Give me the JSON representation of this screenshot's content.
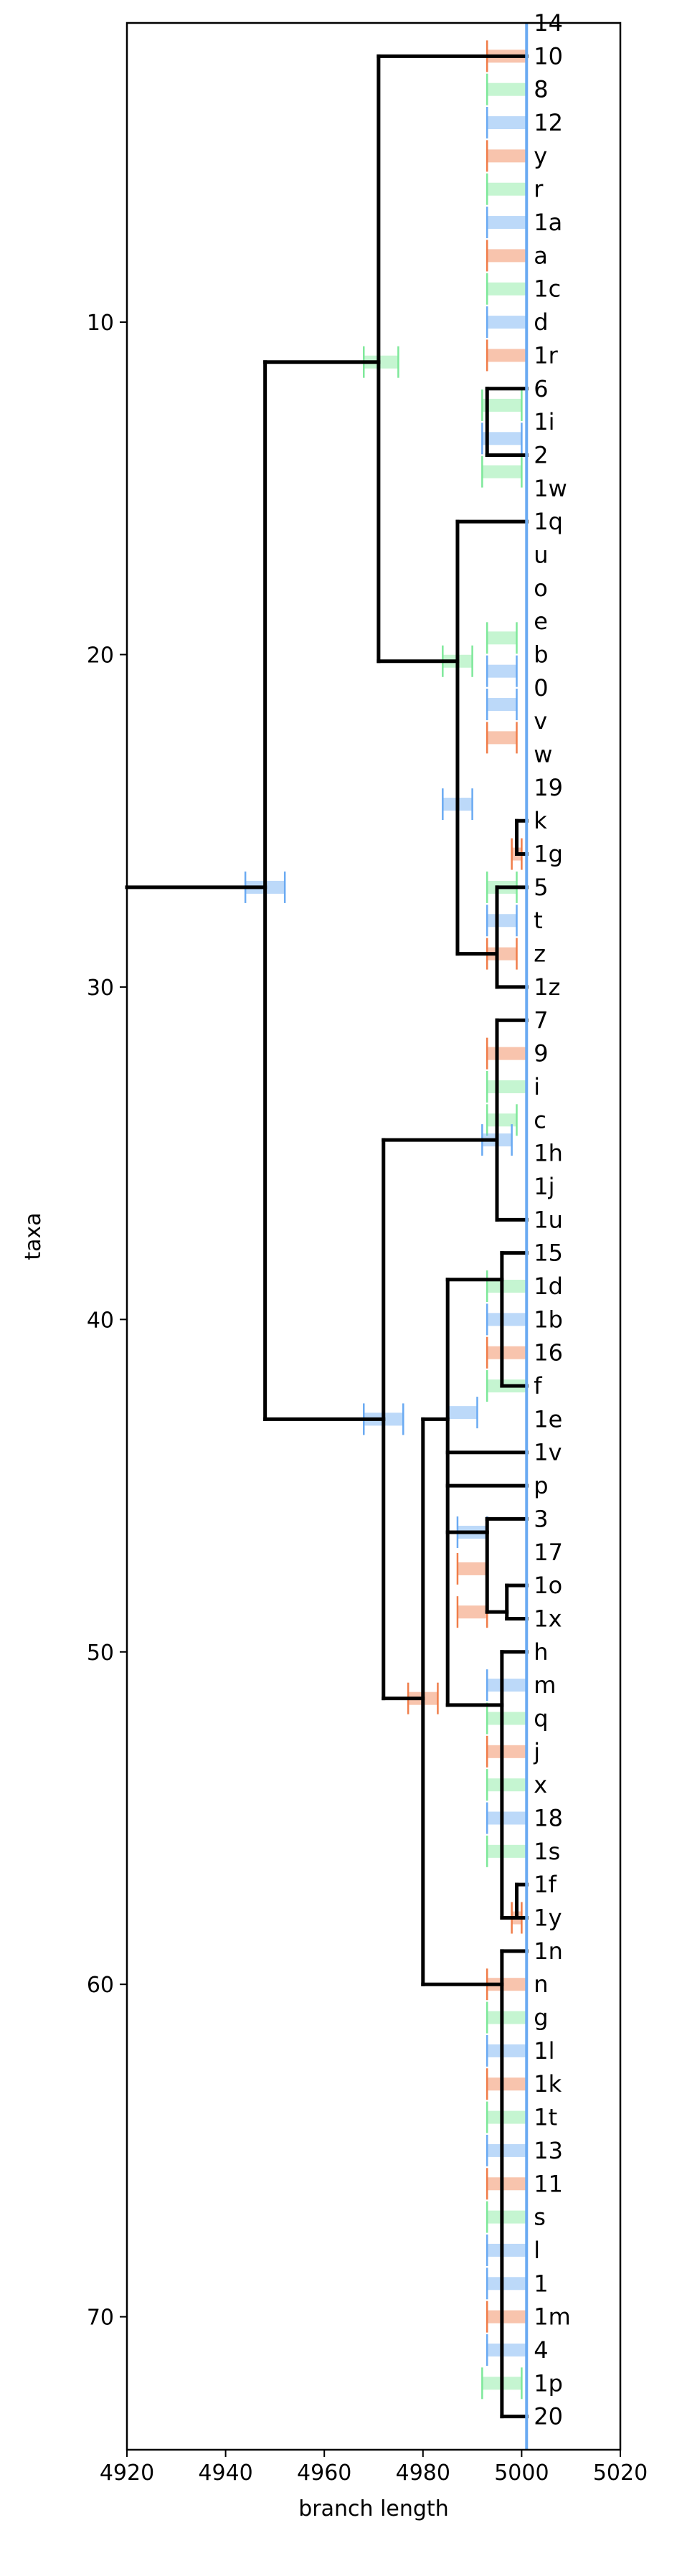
{
  "chart_data": {
    "type": "tree",
    "xlabel": "branch length",
    "ylabel": "taxa",
    "xlim": [
      4920,
      5020
    ],
    "xticks": [
      4920,
      4940,
      4960,
      4980,
      5000,
      5020
    ],
    "xtick_labels": [
      "4920",
      "4940",
      "4960",
      "4980",
      "5000",
      "5020"
    ],
    "ylim": [
      74,
      1
    ],
    "yticks": [
      10,
      20,
      30,
      40,
      50,
      60,
      70
    ],
    "ytick_labels": [
      "10",
      "20",
      "30",
      "40",
      "50",
      "60",
      "70"
    ],
    "grid": false,
    "vline_x": 5001,
    "colors": {
      "blue": "#6aaaf2",
      "orange": "#f07d4a",
      "green": "#7ee89a",
      "black": "#000000",
      "vline": "#6aaaf2"
    },
    "leaves": [
      {
        "y": 1,
        "label": "14"
      },
      {
        "y": 2,
        "label": "10"
      },
      {
        "y": 3,
        "label": "8"
      },
      {
        "y": 4,
        "label": "12"
      },
      {
        "y": 5,
        "label": "y"
      },
      {
        "y": 6,
        "label": "r"
      },
      {
        "y": 7,
        "label": "1a"
      },
      {
        "y": 8,
        "label": "a"
      },
      {
        "y": 9,
        "label": "1c"
      },
      {
        "y": 10,
        "label": "d"
      },
      {
        "y": 11,
        "label": "1r"
      },
      {
        "y": 12,
        "label": "6"
      },
      {
        "y": 13,
        "label": "1i"
      },
      {
        "y": 14,
        "label": "2"
      },
      {
        "y": 15,
        "label": "1w"
      },
      {
        "y": 16,
        "label": "1q"
      },
      {
        "y": 17,
        "label": "u"
      },
      {
        "y": 18,
        "label": "o"
      },
      {
        "y": 19,
        "label": "e"
      },
      {
        "y": 20,
        "label": "b"
      },
      {
        "y": 21,
        "label": "0"
      },
      {
        "y": 22,
        "label": "v"
      },
      {
        "y": 23,
        "label": "w"
      },
      {
        "y": 24,
        "label": "19"
      },
      {
        "y": 25,
        "label": "k"
      },
      {
        "y": 26,
        "label": "1g"
      },
      {
        "y": 27,
        "label": "5"
      },
      {
        "y": 28,
        "label": "t"
      },
      {
        "y": 29,
        "label": "z"
      },
      {
        "y": 30,
        "label": "1z"
      },
      {
        "y": 31,
        "label": "7"
      },
      {
        "y": 32,
        "label": "9"
      },
      {
        "y": 33,
        "label": "i"
      },
      {
        "y": 34,
        "label": "c"
      },
      {
        "y": 35,
        "label": "1h"
      },
      {
        "y": 36,
        "label": "1j"
      },
      {
        "y": 37,
        "label": "1u"
      },
      {
        "y": 38,
        "label": "15"
      },
      {
        "y": 39,
        "label": "1d"
      },
      {
        "y": 40,
        "label": "1b"
      },
      {
        "y": 41,
        "label": "16"
      },
      {
        "y": 42,
        "label": "f"
      },
      {
        "y": 43,
        "label": "1e"
      },
      {
        "y": 44,
        "label": "1v"
      },
      {
        "y": 45,
        "label": "p"
      },
      {
        "y": 46,
        "label": "3"
      },
      {
        "y": 47,
        "label": "17"
      },
      {
        "y": 48,
        "label": "1o"
      },
      {
        "y": 49,
        "label": "1x"
      },
      {
        "y": 50,
        "label": "h"
      },
      {
        "y": 51,
        "label": "m"
      },
      {
        "y": 52,
        "label": "q"
      },
      {
        "y": 53,
        "label": "j"
      },
      {
        "y": 54,
        "label": "x"
      },
      {
        "y": 55,
        "label": "18"
      },
      {
        "y": 56,
        "label": "1s"
      },
      {
        "y": 57,
        "label": "1f"
      },
      {
        "y": 58,
        "label": "1y"
      },
      {
        "y": 59,
        "label": "1n"
      },
      {
        "y": 60,
        "label": "n"
      },
      {
        "y": 61,
        "label": "g"
      },
      {
        "y": 62,
        "label": "1l"
      },
      {
        "y": 63,
        "label": "1k"
      },
      {
        "y": 64,
        "label": "1t"
      },
      {
        "y": 65,
        "label": "13"
      },
      {
        "y": 66,
        "label": "11"
      },
      {
        "y": 67,
        "label": "s"
      },
      {
        "y": 68,
        "label": "l"
      },
      {
        "y": 69,
        "label": "1"
      },
      {
        "y": 70,
        "label": "1m"
      },
      {
        "y": 71,
        "label": "4"
      },
      {
        "y": 72,
        "label": "1p"
      },
      {
        "y": 73,
        "label": "20"
      }
    ],
    "branches": [
      [
        4920,
        27,
        4948,
        27
      ],
      [
        4948,
        11.2,
        4948,
        43
      ],
      [
        4948,
        11.2,
        4971,
        11.2
      ],
      [
        4971,
        2,
        4971,
        20.2
      ],
      [
        4971,
        2,
        5001,
        2
      ],
      [
        4971,
        20.2,
        4987,
        20.2
      ],
      [
        4987,
        16,
        4987,
        29
      ],
      [
        4987,
        16,
        5001,
        16
      ],
      [
        4987,
        29,
        4995,
        29
      ],
      [
        4995,
        27,
        4995,
        30
      ],
      [
        4995,
        27,
        5001,
        27
      ],
      [
        4995,
        30,
        5001,
        30
      ],
      [
        4948,
        43,
        4972,
        43
      ],
      [
        4972,
        34.6,
        4972,
        51.4
      ],
      [
        4972,
        34.6,
        4995,
        34.6
      ],
      [
        4995,
        31,
        4995,
        37
      ],
      [
        4995,
        31,
        5001,
        31
      ],
      [
        4995,
        37,
        5001,
        37
      ],
      [
        4972,
        51.4,
        4980,
        51.4
      ],
      [
        4980,
        43,
        4980,
        60
      ],
      [
        4980,
        43,
        4985,
        43
      ],
      [
        4985,
        38.8,
        4985,
        51.6
      ],
      [
        4985,
        38.8,
        4996,
        38.8
      ],
      [
        4996,
        38,
        4996,
        42
      ],
      [
        4996,
        38,
        5001,
        38
      ],
      [
        4996,
        42,
        5001,
        42
      ],
      [
        4985,
        44,
        5001,
        44
      ],
      [
        4985,
        45,
        5001,
        45
      ],
      [
        4985,
        46.4,
        4993,
        46.4
      ],
      [
        4993,
        46,
        4993,
        48.8
      ],
      [
        4993,
        46,
        5001,
        46
      ],
      [
        4993,
        48.8,
        4997,
        48.8
      ],
      [
        4997,
        48,
        4997,
        49
      ],
      [
        4997,
        48,
        5001,
        48
      ],
      [
        4997,
        49,
        5001,
        49
      ],
      [
        4985,
        51.6,
        4996,
        51.6
      ],
      [
        4996,
        50,
        4996,
        58
      ],
      [
        4996,
        50,
        5001,
        50
      ],
      [
        4996,
        58,
        5001,
        58
      ],
      [
        4980,
        60,
        4996,
        60
      ],
      [
        4996,
        59,
        4996,
        73
      ],
      [
        4996,
        59,
        5001,
        59
      ],
      [
        4996,
        73,
        5001,
        73
      ],
      [
        4993,
        12,
        4993,
        14
      ],
      [
        4993,
        12,
        5001,
        12
      ],
      [
        4993,
        14,
        5001,
        14
      ],
      [
        4999,
        25,
        4999,
        26
      ],
      [
        4999,
        25,
        5001,
        25
      ],
      [
        4999,
        26,
        5001,
        26
      ],
      [
        4999,
        57,
        4999,
        58
      ],
      [
        4999,
        57,
        5001,
        57
      ]
    ],
    "ci_bars": [
      {
        "y": 27,
        "center": 4948,
        "lo": 4944,
        "hi": 4952,
        "color": "blue"
      },
      {
        "y": 11.2,
        "center": 4971,
        "lo": 4968,
        "hi": 4975,
        "color": "green"
      },
      {
        "y": 43,
        "center": 4972,
        "lo": 4968,
        "hi": 4976,
        "color": "blue"
      },
      {
        "y": 51.4,
        "center": 4980,
        "lo": 4977,
        "hi": 4983,
        "color": "orange"
      },
      {
        "y": 20.2,
        "center": 4987,
        "lo": 4984,
        "hi": 4990,
        "color": "green"
      },
      {
        "y": 24.5,
        "center": 4987,
        "lo": 4984,
        "hi": 4990,
        "color": "blue"
      },
      {
        "y": 42.8,
        "center": 4988,
        "lo": 4985,
        "hi": 4991,
        "color": "blue"
      },
      {
        "y": 46.4,
        "center": 4990,
        "lo": 4987,
        "hi": 4993,
        "color": "blue"
      },
      {
        "y": 47.5,
        "center": 4990,
        "lo": 4987,
        "hi": 4993,
        "color": "orange"
      },
      {
        "y": 48.8,
        "center": 4990,
        "lo": 4987,
        "hi": 4993,
        "color": "orange"
      },
      {
        "y": 2,
        "center": 4997,
        "lo": 4993,
        "hi": 5001,
        "color": "orange"
      },
      {
        "y": 3,
        "center": 4997,
        "lo": 4993,
        "hi": 5001,
        "color": "green"
      },
      {
        "y": 4,
        "center": 4997,
        "lo": 4993,
        "hi": 5001,
        "color": "blue"
      },
      {
        "y": 5,
        "center": 4997,
        "lo": 4993,
        "hi": 5001,
        "color": "orange"
      },
      {
        "y": 6,
        "center": 4997,
        "lo": 4993,
        "hi": 5001,
        "color": "green"
      },
      {
        "y": 7,
        "center": 4997,
        "lo": 4993,
        "hi": 5001,
        "color": "blue"
      },
      {
        "y": 8,
        "center": 4997,
        "lo": 4993,
        "hi": 5001,
        "color": "orange"
      },
      {
        "y": 9,
        "center": 4997,
        "lo": 4993,
        "hi": 5001,
        "color": "green"
      },
      {
        "y": 10,
        "center": 4997,
        "lo": 4993,
        "hi": 5001,
        "color": "blue"
      },
      {
        "y": 11,
        "center": 4997,
        "lo": 4993,
        "hi": 5001,
        "color": "orange"
      },
      {
        "y": 12.5,
        "center": 4996,
        "lo": 4992,
        "hi": 5000,
        "color": "green"
      },
      {
        "y": 13.5,
        "center": 4996,
        "lo": 4992,
        "hi": 5000,
        "color": "blue"
      },
      {
        "y": 14.5,
        "center": 4996,
        "lo": 4992,
        "hi": 5000,
        "color": "green"
      },
      {
        "y": 19.5,
        "center": 4996,
        "lo": 4993,
        "hi": 4999,
        "color": "green"
      },
      {
        "y": 20.5,
        "center": 4996,
        "lo": 4993,
        "hi": 4999,
        "color": "blue"
      },
      {
        "y": 21.5,
        "center": 4996,
        "lo": 4993,
        "hi": 4999,
        "color": "blue"
      },
      {
        "y": 22.5,
        "center": 4996,
        "lo": 4993,
        "hi": 4999,
        "color": "orange"
      },
      {
        "y": 26,
        "center": 4999,
        "lo": 4998,
        "hi": 5000,
        "color": "orange"
      },
      {
        "y": 27,
        "center": 4996,
        "lo": 4993,
        "hi": 4999,
        "color": "green"
      },
      {
        "y": 28,
        "center": 4996,
        "lo": 4993,
        "hi": 4999,
        "color": "blue"
      },
      {
        "y": 29,
        "center": 4996,
        "lo": 4993,
        "hi": 4999,
        "color": "orange"
      },
      {
        "y": 32,
        "center": 4997,
        "lo": 4993,
        "hi": 5001,
        "color": "orange"
      },
      {
        "y": 33,
        "center": 4997,
        "lo": 4993,
        "hi": 5001,
        "color": "green"
      },
      {
        "y": 34,
        "center": 4996,
        "lo": 4993,
        "hi": 4999,
        "color": "green"
      },
      {
        "y": 34.6,
        "center": 4995,
        "lo": 4992,
        "hi": 4998,
        "color": "blue"
      },
      {
        "y": 39,
        "center": 4997,
        "lo": 4993,
        "hi": 5001,
        "color": "green"
      },
      {
        "y": 40,
        "center": 4997,
        "lo": 4993,
        "hi": 5001,
        "color": "blue"
      },
      {
        "y": 41,
        "center": 4997,
        "lo": 4993,
        "hi": 5001,
        "color": "orange"
      },
      {
        "y": 42,
        "center": 4997,
        "lo": 4993,
        "hi": 5001,
        "color": "green"
      },
      {
        "y": 51,
        "center": 4997,
        "lo": 4993,
        "hi": 5001,
        "color": "blue"
      },
      {
        "y": 52,
        "center": 4997,
        "lo": 4993,
        "hi": 5001,
        "color": "green"
      },
      {
        "y": 53,
        "center": 4997,
        "lo": 4993,
        "hi": 5001,
        "color": "orange"
      },
      {
        "y": 54,
        "center": 4997,
        "lo": 4993,
        "hi": 5001,
        "color": "green"
      },
      {
        "y": 55,
        "center": 4997,
        "lo": 4993,
        "hi": 5001,
        "color": "blue"
      },
      {
        "y": 56,
        "center": 4997,
        "lo": 4993,
        "hi": 5001,
        "color": "green"
      },
      {
        "y": 58,
        "center": 4999,
        "lo": 4998,
        "hi": 5000,
        "color": "orange"
      },
      {
        "y": 60,
        "center": 4996,
        "lo": 4993,
        "hi": 5001,
        "color": "orange"
      },
      {
        "y": 61,
        "center": 4997,
        "lo": 4993,
        "hi": 5001,
        "color": "green"
      },
      {
        "y": 62,
        "center": 4997,
        "lo": 4993,
        "hi": 5001,
        "color": "blue"
      },
      {
        "y": 63,
        "center": 4997,
        "lo": 4993,
        "hi": 5001,
        "color": "orange"
      },
      {
        "y": 64,
        "center": 4997,
        "lo": 4993,
        "hi": 5001,
        "color": "green"
      },
      {
        "y": 65,
        "center": 4997,
        "lo": 4993,
        "hi": 5001,
        "color": "blue"
      },
      {
        "y": 66,
        "center": 4997,
        "lo": 4993,
        "hi": 5001,
        "color": "orange"
      },
      {
        "y": 67,
        "center": 4997,
        "lo": 4993,
        "hi": 5001,
        "color": "green"
      },
      {
        "y": 68,
        "center": 4997,
        "lo": 4993,
        "hi": 5001,
        "color": "blue"
      },
      {
        "y": 69,
        "center": 4997,
        "lo": 4993,
        "hi": 5001,
        "color": "blue"
      },
      {
        "y": 70,
        "center": 4997,
        "lo": 4993,
        "hi": 5001,
        "color": "orange"
      },
      {
        "y": 71,
        "center": 4997,
        "lo": 4993,
        "hi": 5001,
        "color": "blue"
      },
      {
        "y": 72,
        "center": 4996,
        "lo": 4992,
        "hi": 5000,
        "color": "green"
      }
    ]
  }
}
